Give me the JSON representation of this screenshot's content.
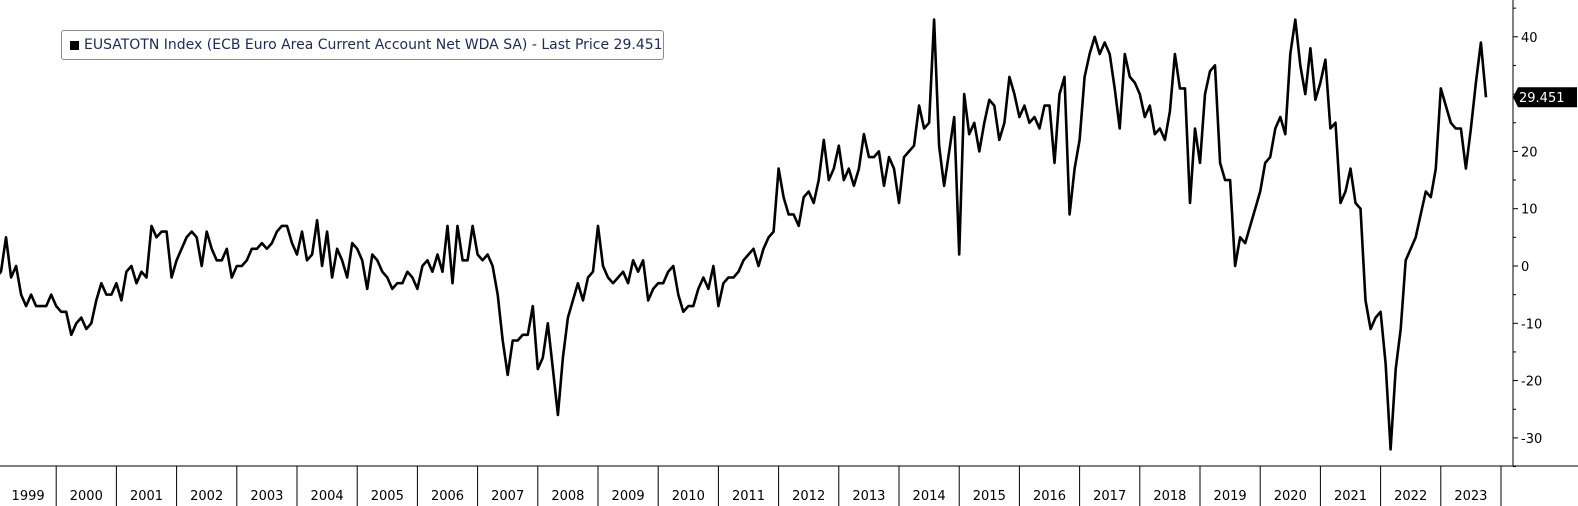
{
  "legend": {
    "label": "EUSATOTN Index (ECB Euro Area Current Account Net WDA SA) - Last Price",
    "last_value": "29.451"
  },
  "last_price_tag": "29.451",
  "chart_data": {
    "type": "line",
    "title": "",
    "xlabel": "",
    "ylabel": "",
    "y_axis_side": "right",
    "ylim": [
      -35,
      45
    ],
    "y_ticks": [
      40,
      30,
      20,
      10,
      0,
      -10,
      -20,
      -30
    ],
    "x_ticks": [
      "1999",
      "2000",
      "2001",
      "2002",
      "2003",
      "2004",
      "2005",
      "2006",
      "2007",
      "2008",
      "2009",
      "2010",
      "2011",
      "2012",
      "2013",
      "2014",
      "2015",
      "2016",
      "2017",
      "2018",
      "2019",
      "2020",
      "2021",
      "2022",
      "2023"
    ],
    "grid": false,
    "legend_position": "top-left",
    "line_color": "#000000",
    "series": [
      {
        "name": "EUSATOTN Index (ECB Euro Area Current Account Net WDA SA) - Last Price",
        "x_start": "1999-01",
        "frequency": "monthly",
        "values": [
          -2,
          -1,
          5,
          -2,
          0,
          -5,
          -7,
          -5,
          -7,
          -7,
          -7,
          -5,
          -7,
          -8,
          -8,
          -12,
          -10,
          -9,
          -11,
          -10,
          -6,
          -3,
          -5,
          -5,
          -3,
          -6,
          -1,
          0,
          -3,
          -1,
          -2,
          7,
          5,
          6,
          6,
          -2,
          1,
          3,
          5,
          6,
          5,
          0,
          6,
          3,
          1,
          1,
          3,
          -2,
          0,
          0,
          1,
          3,
          3,
          4,
          3,
          4,
          6,
          7,
          7,
          4,
          2,
          6,
          1,
          2,
          8,
          0,
          6,
          -2,
          3,
          1,
          -2,
          4,
          3,
          1,
          -4,
          2,
          1,
          -1,
          -2,
          -4,
          -3,
          -3,
          -1,
          -2,
          -4,
          0,
          1,
          -1,
          2,
          -1,
          7,
          -3,
          7,
          1,
          1,
          7,
          2,
          1,
          2,
          0,
          -5,
          -13,
          -19,
          -13,
          -13,
          -12,
          -12,
          -7,
          -18,
          -16,
          -10,
          -18,
          -26,
          -16,
          -9,
          -6,
          -3,
          -6,
          -2,
          -1,
          7,
          0,
          -2,
          -3,
          -2,
          -1,
          -3,
          1,
          -1,
          1,
          -6,
          -4,
          -3,
          -3,
          -1,
          0,
          -5,
          -8,
          -7,
          -7,
          -4,
          -2,
          -4,
          0,
          -7,
          -3,
          -2,
          -2,
          -1,
          1,
          2,
          3,
          0,
          3,
          5,
          6,
          17,
          12,
          9,
          9,
          7,
          12,
          13,
          11,
          15,
          22,
          15,
          17,
          21,
          15,
          17,
          14,
          17,
          23,
          19,
          19,
          20,
          14,
          19,
          17,
          11,
          19,
          20,
          21,
          28,
          24,
          25,
          43,
          21,
          14,
          20,
          26,
          2,
          30,
          23,
          25,
          20,
          25,
          29,
          28,
          22,
          25,
          33,
          30,
          26,
          28,
          25,
          26,
          24,
          28,
          28,
          18,
          30,
          33,
          9,
          17,
          22,
          33,
          37,
          40,
          37,
          39,
          37,
          31,
          24,
          37,
          33,
          32,
          30,
          26,
          28,
          23,
          24,
          22,
          27,
          37,
          31,
          31,
          11,
          24,
          18,
          30,
          34,
          35,
          18,
          15,
          15,
          0,
          5,
          4,
          7,
          10,
          13,
          18,
          19,
          24,
          26,
          23,
          37,
          43,
          35,
          30,
          38,
          29,
          32,
          36,
          24,
          25,
          11,
          13,
          17,
          11,
          10,
          -6,
          -11,
          -9,
          -8,
          -17,
          -32,
          -18,
          -11,
          1,
          3,
          5,
          9,
          13,
          12,
          17,
          31,
          28,
          25,
          24,
          24,
          17,
          24,
          32,
          39,
          29.451
        ]
      }
    ]
  }
}
